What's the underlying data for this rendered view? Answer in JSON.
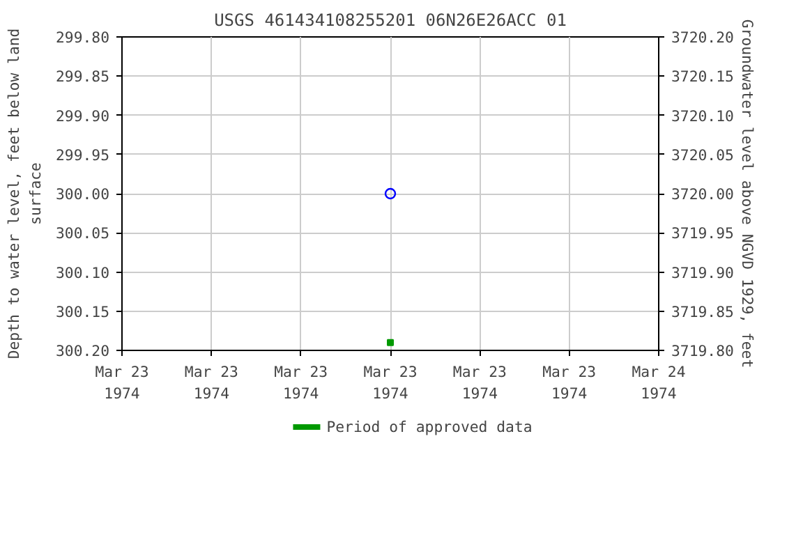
{
  "chart_data": {
    "type": "scatter",
    "title": "USGS 461434108255201 06N26E26ACC 01",
    "ylabel": "Depth to water level, feet below land\nsurface",
    "y2label": "Groundwater level above NGVD 1929, feet",
    "series": [
      {
        "type": "scatter",
        "x": [
          "1974-03-23T12:00"
        ],
        "values": [
          300.0
        ],
        "color": "#0000ff",
        "marker": "circle"
      },
      {
        "type": "scatter",
        "name": "Period of approved data",
        "x": [
          "1974-03-23T12:00"
        ],
        "values": [
          300.19
        ],
        "color": "#009900",
        "marker": "square"
      }
    ],
    "xlim": [
      "1974-03-23T00:00",
      "1974-03-24T00:00"
    ],
    "xticks": [
      {
        "value": "1974-03-23T00:00",
        "label": "Mar 23\n1974"
      },
      {
        "value": "1974-03-23T04:00",
        "label": "Mar 23\n1974"
      },
      {
        "value": "1974-03-23T08:00",
        "label": "Mar 23\n1974"
      },
      {
        "value": "1974-03-23T12:00",
        "label": "Mar 23\n1974"
      },
      {
        "value": "1974-03-23T16:00",
        "label": "Mar 23\n1974"
      },
      {
        "value": "1974-03-23T20:00",
        "label": "Mar 23\n1974"
      },
      {
        "value": "1974-03-24T00:00",
        "label": "Mar 24\n1974"
      }
    ],
    "ylim": [
      300.2,
      299.8
    ],
    "yticks": [
      {
        "value": 299.8,
        "label": "299.80"
      },
      {
        "value": 299.85,
        "label": "299.85"
      },
      {
        "value": 299.9,
        "label": "299.90"
      },
      {
        "value": 299.95,
        "label": "299.95"
      },
      {
        "value": 300.0,
        "label": "300.00"
      },
      {
        "value": 300.05,
        "label": "300.05"
      },
      {
        "value": 300.1,
        "label": "300.10"
      },
      {
        "value": 300.15,
        "label": "300.15"
      },
      {
        "value": 300.2,
        "label": "300.20"
      }
    ],
    "y2lim": [
      3719.8,
      3720.2
    ],
    "y2ticks": [
      {
        "value": 3720.2,
        "label": "3720.20"
      },
      {
        "value": 3720.15,
        "label": "3720.15"
      },
      {
        "value": 3720.1,
        "label": "3720.10"
      },
      {
        "value": 3720.05,
        "label": "3720.05"
      },
      {
        "value": 3720.0,
        "label": "3720.00"
      },
      {
        "value": 3719.95,
        "label": "3719.95"
      },
      {
        "value": 3719.9,
        "label": "3719.90"
      },
      {
        "value": 3719.85,
        "label": "3719.85"
      },
      {
        "value": 3719.8,
        "label": "3719.80"
      }
    ],
    "grid": true,
    "legend": "bottom"
  }
}
